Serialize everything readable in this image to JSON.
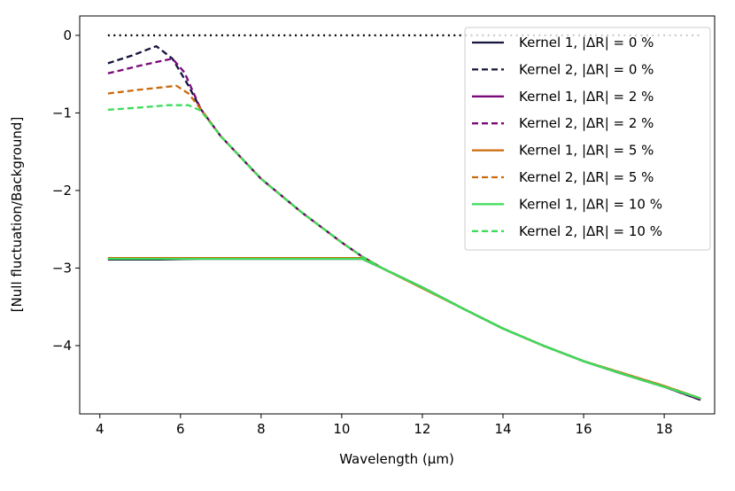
{
  "chart_data": {
    "type": "line",
    "title": "",
    "xlabel": "Wavelength (μm)",
    "ylabel": "[Null fluctuation/Background]",
    "xlim": [
      3.5,
      19.25
    ],
    "ylim": [
      -4.88,
      0.25
    ],
    "xticks": [
      4,
      6,
      8,
      10,
      12,
      14,
      16,
      18
    ],
    "yticks": [
      0,
      -1,
      -2,
      -3,
      -4
    ],
    "xtick_labels": [
      "4",
      "6",
      "8",
      "10",
      "12",
      "14",
      "16",
      "18"
    ],
    "ytick_labels": [
      "0",
      "−1",
      "−2",
      "−3",
      "−4"
    ],
    "grid": false,
    "legend_position": "top-right",
    "reference_line": {
      "y": 0,
      "style": "dotted",
      "color": "#000000"
    },
    "series": [
      {
        "name": "Kernel 1, |ΔR| = 0 %",
        "color": "#14143c",
        "style": "solid",
        "x": [
          4.2,
          5.5,
          6.5,
          8,
          9,
          10,
          10.5,
          11,
          12,
          13,
          14,
          15,
          16,
          17,
          18,
          18.9
        ],
        "y": [
          -2.89,
          -2.89,
          -2.88,
          -2.88,
          -2.88,
          -2.88,
          -2.88,
          -3.0,
          -3.25,
          -3.52,
          -3.78,
          -4.0,
          -4.2,
          -4.37,
          -4.53,
          -4.7
        ]
      },
      {
        "name": "Kernel 2, |ΔR| = 0 %",
        "color": "#14143c",
        "style": "dashed",
        "x": [
          4.2,
          4.8,
          5.4,
          5.8,
          6.2,
          6.5,
          7,
          8,
          9,
          10,
          10.5,
          11,
          12,
          13,
          14,
          15,
          16,
          17,
          18,
          18.9
        ],
        "y": [
          -0.36,
          -0.26,
          -0.14,
          -0.3,
          -0.65,
          -0.95,
          -1.3,
          -1.85,
          -2.28,
          -2.67,
          -2.85,
          -3.0,
          -3.25,
          -3.52,
          -3.78,
          -4.0,
          -4.2,
          -4.37,
          -4.53,
          -4.7
        ]
      },
      {
        "name": "Kernel 1, |ΔR| = 2 %",
        "color": "#7a0a7a",
        "style": "solid",
        "x": [
          4.2,
          6,
          8,
          10,
          10.5,
          11,
          12,
          13,
          14,
          15,
          16,
          17,
          18,
          18.9
        ],
        "y": [
          -2.88,
          -2.88,
          -2.88,
          -2.88,
          -2.88,
          -3.0,
          -3.25,
          -3.52,
          -3.78,
          -4.0,
          -4.2,
          -4.37,
          -4.53,
          -4.69
        ]
      },
      {
        "name": "Kernel 2, |ΔR| = 2 %",
        "color": "#7a0a7a",
        "style": "dashed",
        "x": [
          4.2,
          5.0,
          5.8,
          6.1,
          6.5,
          7,
          8,
          9,
          10,
          10.5,
          11,
          12,
          13,
          14,
          15,
          16,
          17,
          18,
          18.9
        ],
        "y": [
          -0.49,
          -0.39,
          -0.3,
          -0.48,
          -0.95,
          -1.3,
          -1.85,
          -2.28,
          -2.67,
          -2.85,
          -3.0,
          -3.25,
          -3.52,
          -3.78,
          -4.0,
          -4.2,
          -4.37,
          -4.53,
          -4.69
        ]
      },
      {
        "name": "Kernel 1, |ΔR| = 5 %",
        "color": "#cc6a0a",
        "style": "solid",
        "x": [
          4.2,
          6,
          8,
          10,
          10.5,
          11,
          12,
          13,
          14,
          15,
          16,
          17,
          18,
          18.9
        ],
        "y": [
          -2.87,
          -2.87,
          -2.87,
          -2.87,
          -2.87,
          -3.0,
          -3.26,
          -3.52,
          -3.78,
          -4.0,
          -4.2,
          -4.36,
          -4.52,
          -4.68
        ]
      },
      {
        "name": "Kernel 2, |ΔR| = 5 %",
        "color": "#cc6a0a",
        "style": "dashed",
        "x": [
          4.2,
          5.0,
          5.9,
          6.2,
          6.5,
          7,
          8,
          9,
          10,
          10.5,
          11,
          12,
          13,
          14,
          15,
          16,
          17,
          18,
          18.9
        ],
        "y": [
          -0.75,
          -0.7,
          -0.65,
          -0.75,
          -0.95,
          -1.3,
          -1.85,
          -2.28,
          -2.67,
          -2.85,
          -3.0,
          -3.26,
          -3.52,
          -3.78,
          -4.0,
          -4.2,
          -4.36,
          -4.52,
          -4.68
        ]
      },
      {
        "name": "Kernel 1, |ΔR| = 10 %",
        "color": "#3ddc5a",
        "style": "solid",
        "x": [
          4.2,
          6,
          8,
          10,
          10.5,
          11,
          12,
          13,
          14,
          15,
          16,
          17,
          18,
          18.9
        ],
        "y": [
          -2.88,
          -2.88,
          -2.88,
          -2.88,
          -2.88,
          -3.0,
          -3.25,
          -3.52,
          -3.78,
          -4.0,
          -4.2,
          -4.37,
          -4.53,
          -4.68
        ]
      },
      {
        "name": "Kernel 2, |ΔR| = 10 %",
        "color": "#3ddc5a",
        "style": "dashed",
        "x": [
          4.2,
          5.0,
          5.7,
          6.2,
          6.5,
          7,
          8,
          9,
          10,
          10.5,
          11,
          12,
          13,
          14,
          15,
          16,
          17,
          18,
          18.9
        ],
        "y": [
          -0.96,
          -0.93,
          -0.9,
          -0.9,
          -0.97,
          -1.3,
          -1.85,
          -2.28,
          -2.67,
          -2.85,
          -3.0,
          -3.25,
          -3.52,
          -3.78,
          -4.0,
          -4.2,
          -4.37,
          -4.53,
          -4.68
        ]
      }
    ]
  }
}
